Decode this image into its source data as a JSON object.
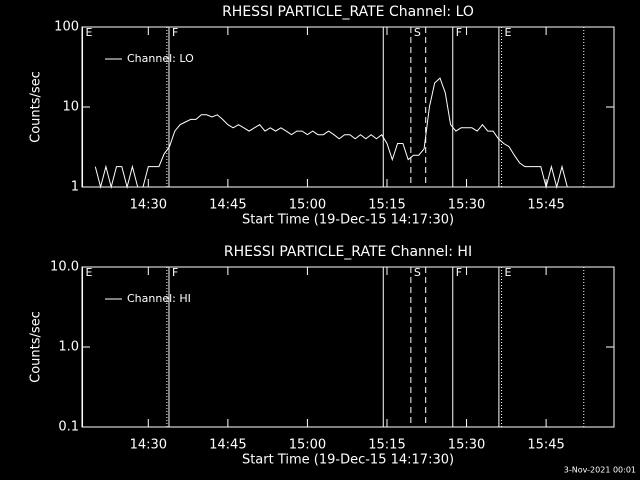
{
  "chart_data": [
    {
      "type": "line",
      "title": "RHESSI PARTICLE_RATE Channel: LO",
      "xlabel": "Start Time (19-Dec-15 14:17:30)",
      "ylabel": "Counts/sec",
      "log_y": true,
      "legend": "upper left",
      "xlim": [
        857.5,
        957.8
      ],
      "xticks": [
        {
          "value": 870,
          "label": "14:30"
        },
        {
          "value": 885,
          "label": "14:45"
        },
        {
          "value": 900,
          "label": "15:00"
        },
        {
          "value": 915,
          "label": "15:15"
        },
        {
          "value": 930,
          "label": "15:30"
        },
        {
          "value": 945,
          "label": "15:45"
        }
      ],
      "ylim": [
        1,
        100
      ],
      "yticks": [
        1,
        10,
        100
      ],
      "x": [
        860,
        861,
        862,
        863,
        864,
        865,
        866,
        867,
        868,
        869,
        870,
        871,
        872,
        873,
        874,
        875,
        876,
        877,
        878,
        879,
        880,
        881,
        882,
        883,
        884,
        885,
        886,
        887,
        888,
        889,
        890,
        891,
        892,
        893,
        894,
        895,
        896,
        897,
        898,
        899,
        900,
        901,
        902,
        903,
        904,
        905,
        906,
        907,
        908,
        909,
        910,
        911,
        912,
        913,
        914,
        915,
        916,
        917,
        918,
        919,
        920,
        921,
        922,
        923,
        924,
        925,
        926,
        927,
        928,
        929,
        930,
        931,
        932,
        933,
        934,
        935,
        936,
        937,
        938,
        939,
        940,
        941,
        942,
        943,
        944,
        945,
        946,
        947,
        948,
        949,
        950
      ],
      "series": [
        {
          "name": "Channel: LO",
          "color": "#ffffff",
          "values": [
            1.8,
            1,
            1.8,
            1,
            1.8,
            1.8,
            1,
            1.8,
            1,
            1,
            1.8,
            1.8,
            1.8,
            2.6,
            3.2,
            5,
            6,
            6.5,
            7,
            7,
            8,
            8,
            7.5,
            8,
            7,
            6,
            5.5,
            6,
            5.5,
            5,
            5.5,
            6,
            5,
            5.5,
            5,
            5.5,
            5,
            4.5,
            5,
            5,
            4.5,
            5,
            4.5,
            4.5,
            5,
            4.5,
            4,
            4.5,
            4.5,
            4,
            4.5,
            4,
            4.5,
            4,
            4.5,
            3.5,
            2.2,
            3.5,
            3.5,
            2.2,
            2.5,
            2.5,
            3,
            10,
            20,
            23,
            15,
            6,
            5,
            5.5,
            5.5,
            5.5,
            5,
            6,
            5,
            5,
            4,
            3.5,
            3.2,
            2.5,
            2,
            1.8,
            1.8,
            1.8,
            1.8,
            1,
            1.8,
            1,
            1.8,
            1,
            1
          ]
        }
      ],
      "markers": [
        {
          "x": 857.6,
          "style": "solid",
          "label": "E"
        },
        {
          "x": 873.5,
          "style": "dotted"
        },
        {
          "x": 873.9,
          "style": "solid",
          "label": "F"
        },
        {
          "x": 914.3,
          "style": "solid"
        },
        {
          "x": 919.5,
          "style": "dashed",
          "label": "S"
        },
        {
          "x": 922.3,
          "style": "dashed"
        },
        {
          "x": 927.4,
          "style": "solid",
          "label": "F"
        },
        {
          "x": 936.1,
          "style": "solid"
        },
        {
          "x": 936.6,
          "style": "dotted",
          "label": "E"
        },
        {
          "x": 952.1,
          "style": "dotted"
        }
      ]
    },
    {
      "type": "line",
      "title": "RHESSI PARTICLE_RATE Channel: HI",
      "xlabel": "Start Time (19-Dec-15 14:17:30)",
      "ylabel": "Counts/sec",
      "log_y": true,
      "legend": "upper left",
      "xlim": [
        857.5,
        957.8
      ],
      "xticks": [
        {
          "value": 870,
          "label": "14:30"
        },
        {
          "value": 885,
          "label": "14:45"
        },
        {
          "value": 900,
          "label": "15:00"
        },
        {
          "value": 915,
          "label": "15:15"
        },
        {
          "value": 930,
          "label": "15:30"
        },
        {
          "value": 945,
          "label": "15:45"
        }
      ],
      "ylim": [
        0.1,
        10
      ],
      "yticks": [
        0.1,
        {
          "value": 1,
          "label": "1.0"
        },
        {
          "value": 10,
          "label": "10.0"
        }
      ],
      "x": [],
      "series": [
        {
          "name": "Channel: HI",
          "color": "#ffffff",
          "values": []
        }
      ],
      "markers": [
        {
          "x": 857.6,
          "style": "solid",
          "label": "E"
        },
        {
          "x": 873.5,
          "style": "dotted"
        },
        {
          "x": 873.9,
          "style": "solid",
          "label": "F"
        },
        {
          "x": 914.3,
          "style": "solid"
        },
        {
          "x": 919.5,
          "style": "dashed",
          "label": "S"
        },
        {
          "x": 922.3,
          "style": "dashed"
        },
        {
          "x": 927.4,
          "style": "solid",
          "label": "F"
        },
        {
          "x": 936.1,
          "style": "solid"
        },
        {
          "x": 936.6,
          "style": "dotted",
          "label": "E"
        },
        {
          "x": 952.1,
          "style": "dotted"
        }
      ]
    }
  ],
  "footer": "3-Nov-2021 00:01"
}
